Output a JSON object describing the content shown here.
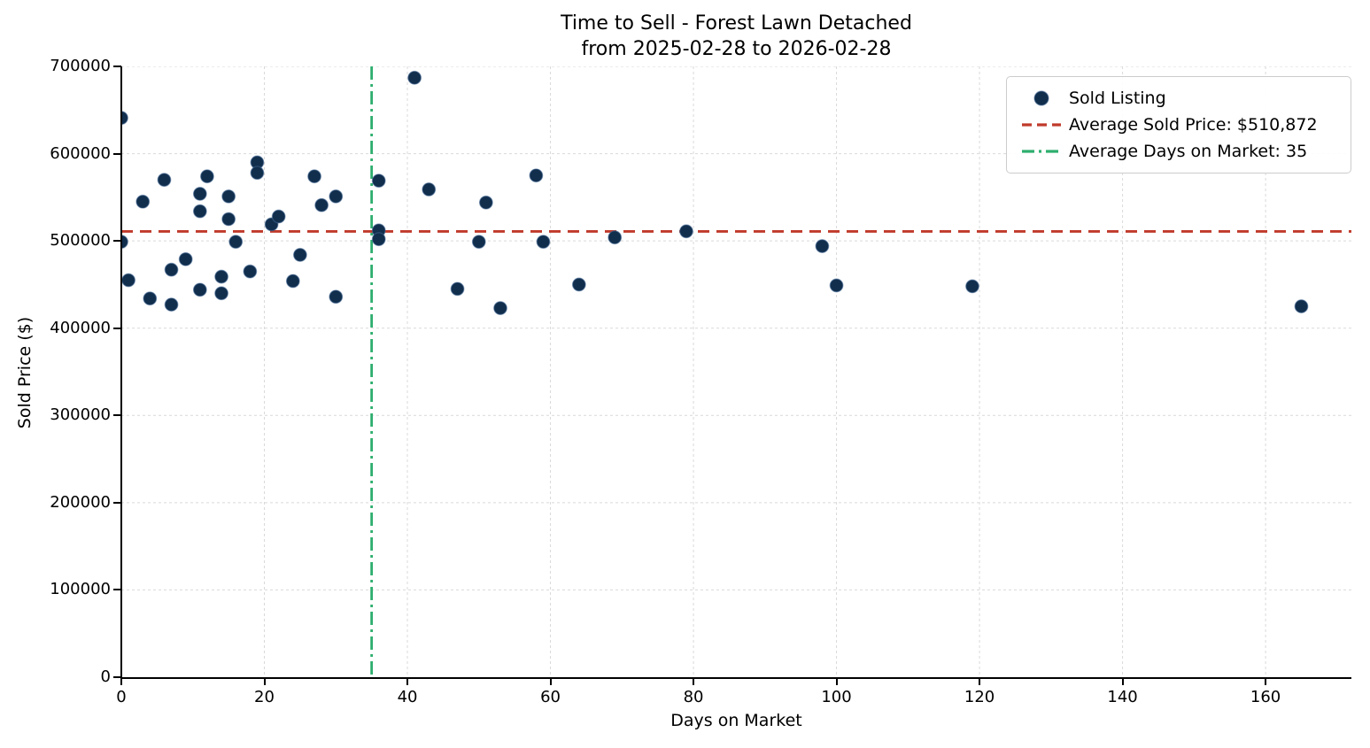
{
  "title": {
    "line1": "Time to Sell - Forest Lawn Detached",
    "line2": "from 2025-02-28 to 2026-02-28"
  },
  "axes": {
    "xlabel": "Days on Market",
    "ylabel": "Sold Price ($)",
    "x_ticks": [
      0,
      20,
      40,
      60,
      80,
      100,
      120,
      140,
      160
    ],
    "y_ticks": [
      0,
      100000,
      200000,
      300000,
      400000,
      500000,
      600000,
      700000
    ],
    "xlim": [
      0,
      172
    ],
    "ylim": [
      0,
      700000
    ],
    "grid": true
  },
  "legend": {
    "position": "top-right",
    "items": [
      {
        "label": "Sold Listing",
        "type": "marker"
      },
      {
        "label": "Average Sold Price: $510,872",
        "type": "dashed-line"
      },
      {
        "label": "Average Days on Market: 35",
        "type": "dashdot-line"
      }
    ]
  },
  "colors": {
    "dot": "#112e4d",
    "avg_price_line": "#c03a2b",
    "avg_days_line": "#2eae6e",
    "grid": "#d9d9d9"
  },
  "chart_data": {
    "type": "scatter",
    "title": "Time to Sell - Forest Lawn Detached from 2025-02-28 to 2026-02-28",
    "xlabel": "Days on Market",
    "ylabel": "Sold Price ($)",
    "xlim": [
      0,
      172
    ],
    "ylim": [
      0,
      700000
    ],
    "avg_sold_price": 510872,
    "avg_days_on_market": 35,
    "series": [
      {
        "name": "Sold Listing",
        "points": [
          [
            0,
            641000
          ],
          [
            0,
            499000
          ],
          [
            1,
            455000
          ],
          [
            3,
            545000
          ],
          [
            4,
            434000
          ],
          [
            6,
            570000
          ],
          [
            7,
            467000
          ],
          [
            7,
            427000
          ],
          [
            9,
            479000
          ],
          [
            11,
            554000
          ],
          [
            11,
            534000
          ],
          [
            11,
            444000
          ],
          [
            12,
            574000
          ],
          [
            14,
            459000
          ],
          [
            14,
            440000
          ],
          [
            15,
            551000
          ],
          [
            15,
            525000
          ],
          [
            16,
            499000
          ],
          [
            18,
            465000
          ],
          [
            19,
            590000
          ],
          [
            19,
            578000
          ],
          [
            21,
            519000
          ],
          [
            22,
            528000
          ],
          [
            24,
            454000
          ],
          [
            25,
            484000
          ],
          [
            27,
            574000
          ],
          [
            28,
            541000
          ],
          [
            30,
            551000
          ],
          [
            30,
            436000
          ],
          [
            36,
            569000
          ],
          [
            36,
            512000
          ],
          [
            36,
            502000
          ],
          [
            41,
            687000
          ],
          [
            43,
            559000
          ],
          [
            47,
            445000
          ],
          [
            50,
            499000
          ],
          [
            51,
            544000
          ],
          [
            53,
            423000
          ],
          [
            58,
            575000
          ],
          [
            59,
            499000
          ],
          [
            64,
            450000
          ],
          [
            69,
            504000
          ],
          [
            79,
            511000
          ],
          [
            98,
            494000
          ],
          [
            100,
            449000
          ],
          [
            119,
            448000
          ],
          [
            165,
            425000
          ]
        ]
      }
    ]
  }
}
